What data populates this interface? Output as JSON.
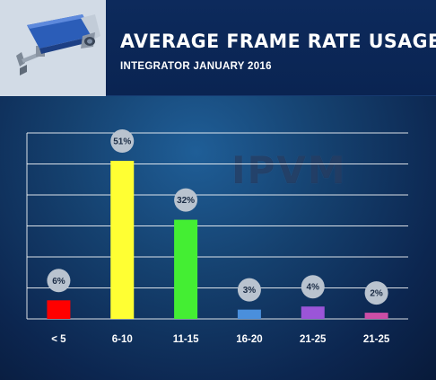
{
  "header": {
    "title": "AVERAGE FRAME RATE USAGE",
    "subtitle": "INTEGRATOR JANUARY 2016",
    "icon": "security-camera-icon"
  },
  "watermark": {
    "text": "IPVM"
  },
  "colors": {
    "background": "#15416f",
    "header": "#0d2a5c",
    "gridline": "#ffffff",
    "label_bubble": "#b9c3cf"
  },
  "chart_data": {
    "type": "bar",
    "title": "AVERAGE FRAME RATE USAGE",
    "subtitle": "INTEGRATOR JANUARY 2016",
    "categories": [
      "< 5",
      "6-10",
      "11-15",
      "16-20",
      "21-25",
      "21-25"
    ],
    "values": [
      6,
      51,
      32,
      3,
      4,
      2
    ],
    "data_labels": [
      "6%",
      "51%",
      "32%",
      "3%",
      "4%",
      "2%"
    ],
    "bar_colors": [
      "#ff0000",
      "#ffff33",
      "#44ee33",
      "#4a8fdc",
      "#9b55d8",
      "#cc4ea6"
    ],
    "ylim": [
      0,
      60
    ],
    "yticks": [
      0,
      10,
      20,
      30,
      40,
      50,
      60
    ],
    "grid": true,
    "legend": "none",
    "xlabel": "",
    "ylabel": ""
  }
}
